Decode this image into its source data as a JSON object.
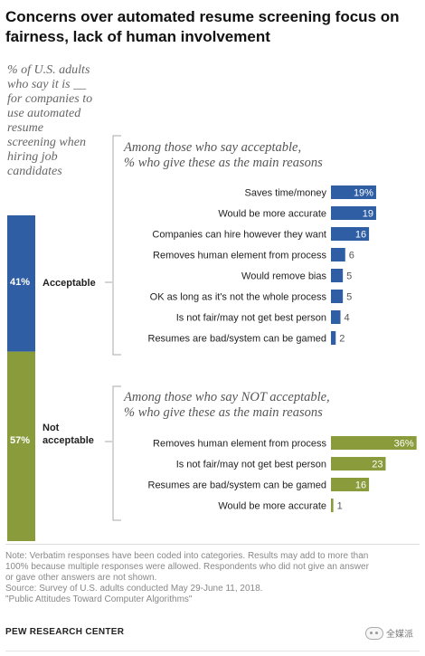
{
  "title": {
    "line1": "Concerns over automated resume screening focus on",
    "line2": "fairness, lack of human involvement"
  },
  "subtitle": {
    "line1": "% of U.S. adults",
    "line2": "who say it is __",
    "line3": "for companies to",
    "line4": "use automated",
    "line5": "resume",
    "line6": "screening when",
    "line7": "hiring job",
    "line8": "candidates"
  },
  "colors": {
    "acceptable": "#2f5ea4",
    "not_acceptable": "#8a9b3b",
    "bracket": "#aaaaaa"
  },
  "chart_data": {
    "type": "bar",
    "totals": [
      {
        "name": "Acceptable",
        "value": 41,
        "display": "41%",
        "label_line1": "Acceptable",
        "label_line2": ""
      },
      {
        "name": "Not acceptable",
        "value": 57,
        "display": "57%",
        "label_line1": "Not",
        "label_line2": "acceptable"
      }
    ],
    "groups": [
      {
        "heading_line1": "Among those who say acceptable,",
        "heading_line2": "% who give these as the main reasons",
        "categories": [
          "Saves time/money",
          "Would be more accurate",
          "Companies can hire however they want",
          "Removes human element from process",
          "Would remove bias",
          "OK as long as it's not the whole process",
          "Is not fair/may not get best person",
          "Resumes are bad/system can be gamed"
        ],
        "values": [
          19,
          19,
          16,
          6,
          5,
          5,
          4,
          2
        ],
        "value_labels": [
          "19%",
          "19",
          "16",
          "6",
          "5",
          "5",
          "4",
          "2"
        ]
      },
      {
        "heading_line1": "Among those who say NOT acceptable,",
        "heading_line2": "% who give these as the main reasons",
        "categories": [
          "Removes human element from process",
          "Is not fair/may not get best person",
          "Resumes are bad/system can be gamed",
          "Would be more accurate"
        ],
        "values": [
          36,
          23,
          16,
          1
        ],
        "value_labels": [
          "36%",
          "23",
          "16",
          "1"
        ]
      }
    ]
  },
  "notes": {
    "line1": "Note: Verbatim responses have been coded into categories. Results may add to more than",
    "line2": "100% because multiple responses were allowed. Respondents who did not give an answer",
    "line3": "or gave other answers are not shown.",
    "line4": "Source: Survey of U.S. adults conducted May 29-June 11, 2018.",
    "line5": "\"Public Attitudes Toward Computer Algorithms\""
  },
  "source_org": "PEW RESEARCH CENTER",
  "watermark": "全媒派"
}
